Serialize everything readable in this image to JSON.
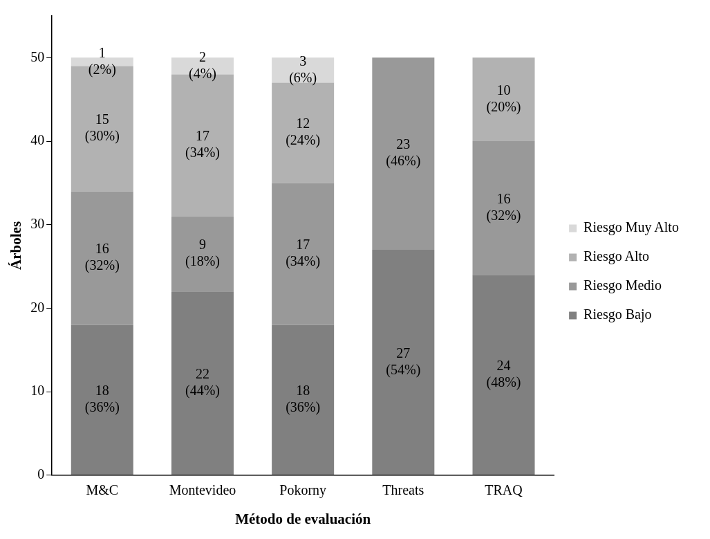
{
  "chart_data": {
    "type": "bar",
    "stacked": true,
    "xlabel": "Método de evaluación",
    "ylabel": "Árboles",
    "categories": [
      "M&C",
      "Montevideo",
      "Pokorny",
      "Threats",
      "TRAQ"
    ],
    "series": [
      {
        "name": "Riesgo Bajo",
        "color": "#808080",
        "values": [
          18,
          22,
          18,
          27,
          24
        ],
        "value_labels": [
          "18 (36%)",
          "22 (44%)",
          "18 (36%)",
          "27 (54%)",
          "24 (48%)"
        ]
      },
      {
        "name": "Riesgo Medio",
        "color": "#999999",
        "values": [
          16,
          9,
          17,
          23,
          16
        ],
        "value_labels": [
          "16 (32%)",
          "9 (18%)",
          "17 (34%)",
          "23 (46%)",
          "16 (32%)"
        ]
      },
      {
        "name": "Riesgo Alto",
        "color": "#b2b2b2",
        "values": [
          15,
          17,
          12,
          0,
          10
        ],
        "value_labels": [
          "15 (30%)",
          "17 (34%)",
          "12 (24%)",
          null,
          "10 (20%)"
        ]
      },
      {
        "name": "Riesgo Muy Alto",
        "color": "#d9d9d9",
        "values": [
          1,
          2,
          3,
          0,
          0
        ],
        "value_labels": [
          "1 (2%)",
          "2 (4%)",
          "3 (6%)",
          null,
          null
        ]
      }
    ],
    "ylim": [
      0,
      55
    ],
    "yticks": [
      0,
      10,
      20,
      30,
      40,
      50
    ],
    "grid": false,
    "legend": "right"
  }
}
